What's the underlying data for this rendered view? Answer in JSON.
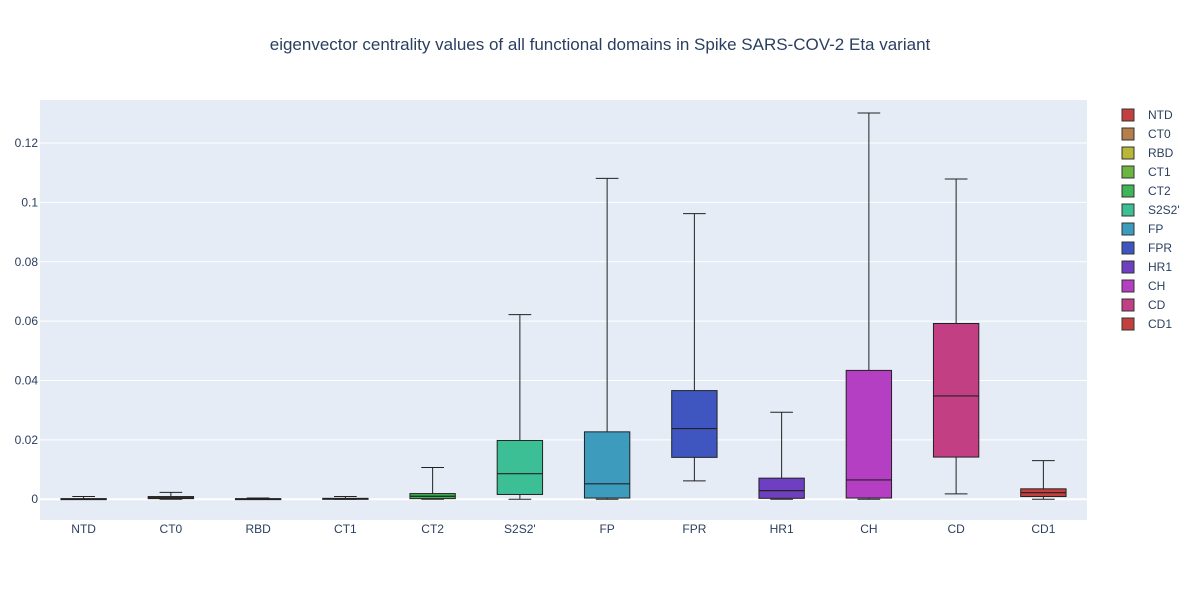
{
  "chart_data": {
    "type": "box",
    "title": "eigenvector centrality values of all functional domains in Spike SARS-COV-2 Eta variant",
    "xlabel": "",
    "ylabel": "",
    "ylim": [
      -0.007,
      0.1345
    ],
    "yticks": [
      0,
      0.02,
      0.04,
      0.06,
      0.08,
      0.1,
      0.12
    ],
    "ytick_labels": [
      "0",
      "0.02",
      "0.04",
      "0.06",
      "0.08",
      "0.1",
      "0.12"
    ],
    "grid": true,
    "legend_position": "right",
    "categories": [
      "NTD",
      "CT0",
      "RBD",
      "CT1",
      "CT2",
      "S2S2'",
      "FP",
      "FPR",
      "HR1",
      "CH",
      "CD",
      "CD1"
    ],
    "series": [
      {
        "name": "NTD",
        "color": "#c4403f",
        "min": 0,
        "q1": 0.0,
        "median": 0.0001,
        "q3": 0.0002,
        "max": 0.0009
      },
      {
        "name": "CT0",
        "color": "#b57e4a",
        "min": 0,
        "q1": 0.0002,
        "median": 0.0005,
        "q3": 0.0009,
        "max": 0.0023
      },
      {
        "name": "RBD",
        "color": "#b8b736",
        "min": 0,
        "q1": 0.0,
        "median": 0.0001,
        "q3": 0.0002,
        "max": 0.0004
      },
      {
        "name": "CT1",
        "color": "#6cb542",
        "min": 0,
        "q1": 0.0,
        "median": 0.0001,
        "q3": 0.0003,
        "max": 0.0009
      },
      {
        "name": "CT2",
        "color": "#3eb556",
        "min": 0,
        "q1": 0.0002,
        "median": 0.001,
        "q3": 0.0019,
        "max": 0.0107
      },
      {
        "name": "S2S2'",
        "color": "#3cbf95",
        "min": 0,
        "q1": 0.0016,
        "median": 0.0086,
        "q3": 0.0198,
        "max": 0.0622
      },
      {
        "name": "FP",
        "color": "#3d9bbe",
        "min": 0,
        "q1": 0.0004,
        "median": 0.0052,
        "q3": 0.0227,
        "max": 0.1081
      },
      {
        "name": "FPR",
        "color": "#3f55bf",
        "min": 0.0062,
        "q1": 0.0141,
        "median": 0.0238,
        "q3": 0.0366,
        "max": 0.0962
      },
      {
        "name": "HR1",
        "color": "#6e3fc0",
        "min": 0,
        "q1": 0.0003,
        "median": 0.0029,
        "q3": 0.0071,
        "max": 0.0293
      },
      {
        "name": "CH",
        "color": "#b53fc2",
        "min": 0,
        "q1": 0.0004,
        "median": 0.0065,
        "q3": 0.0434,
        "max": 0.1301
      },
      {
        "name": "CD",
        "color": "#c23f84",
        "min": 0.0018,
        "q1": 0.0142,
        "median": 0.0348,
        "q3": 0.0592,
        "max": 0.1079
      },
      {
        "name": "CD1",
        "color": "#c4403f",
        "min": 0,
        "q1": 0.0009,
        "median": 0.0022,
        "q3": 0.0035,
        "max": 0.013
      }
    ]
  }
}
